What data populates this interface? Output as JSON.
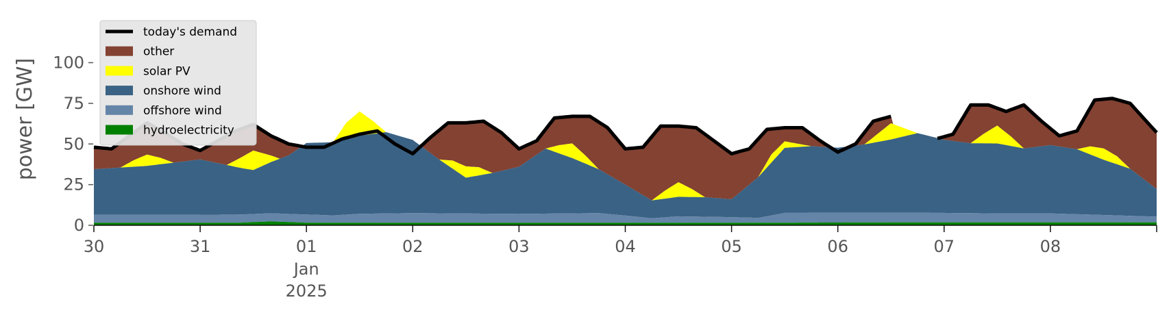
{
  "chart_data": {
    "type": "area",
    "ylabel": "power [GW]",
    "ylim": [
      0,
      120
    ],
    "yticks": [
      0,
      25,
      50,
      75,
      100
    ],
    "x_range_hours": [
      0,
      240
    ],
    "x_ticks": [
      {
        "hour": 0,
        "label": "30",
        "sub1": "",
        "sub2": ""
      },
      {
        "hour": 24,
        "label": "31",
        "sub1": "",
        "sub2": ""
      },
      {
        "hour": 48,
        "label": "01",
        "sub1": "Jan",
        "sub2": "2025"
      },
      {
        "hour": 72,
        "label": "02",
        "sub1": "",
        "sub2": ""
      },
      {
        "hour": 96,
        "label": "03",
        "sub1": "",
        "sub2": ""
      },
      {
        "hour": 120,
        "label": "04",
        "sub1": "",
        "sub2": ""
      },
      {
        "hour": 144,
        "label": "05",
        "sub1": "",
        "sub2": ""
      },
      {
        "hour": 168,
        "label": "06",
        "sub1": "",
        "sub2": ""
      },
      {
        "hour": 192,
        "label": "07",
        "sub1": "",
        "sub2": ""
      },
      {
        "hour": 216,
        "label": "08",
        "sub1": "",
        "sub2": ""
      }
    ],
    "legend": [
      {
        "name": "today's demand",
        "color": "#000000",
        "kind": "line"
      },
      {
        "name": "other",
        "color": "#834232",
        "kind": "patch"
      },
      {
        "name": "solar PV",
        "color": "#ffff00",
        "kind": "patch"
      },
      {
        "name": "onshore wind",
        "color": "#3a6284",
        "kind": "patch"
      },
      {
        "name": "offshore wind",
        "color": "#6485a8",
        "kind": "patch"
      },
      {
        "name": "hydroelectricity",
        "color": "#008000",
        "kind": "patch"
      }
    ],
    "legend_position": "top-left",
    "grid": false,
    "series": [
      {
        "name": "hydroelectricity",
        "color": "#008000",
        "x": [
          0,
          24,
          33,
          40,
          48,
          72,
          96,
          120,
          144,
          168,
          192,
          216,
          240
        ],
        "values": [
          1.5,
          1.5,
          1.6,
          2.4,
          1.6,
          1.5,
          1.5,
          1.5,
          1.5,
          1.7,
          1.8,
          1.8,
          1.8
        ]
      },
      {
        "name": "offshore wind",
        "color": "#6485a8",
        "x": [
          0,
          24,
          48,
          54,
          60,
          72,
          96,
          114,
          120,
          126,
          132,
          144,
          150,
          156,
          168,
          180,
          192,
          204,
          216,
          240
        ],
        "values": [
          5,
          5,
          5,
          4.5,
          5.5,
          6,
          5.5,
          6,
          4.5,
          2.8,
          4,
          3.5,
          3,
          6,
          6,
          6,
          5.8,
          5.5,
          5.5,
          3.5
        ]
      },
      {
        "name": "onshore wind",
        "color": "#3a6284",
        "x": [
          0,
          12,
          24,
          36,
          44,
          48,
          54,
          60,
          66,
          72,
          78,
          84,
          90,
          96,
          102,
          108,
          114,
          120,
          126,
          132,
          138,
          144,
          150,
          156,
          162,
          168,
          174,
          180,
          186,
          192,
          198,
          204,
          210,
          216,
          222,
          228,
          234,
          240
        ],
        "values": [
          28,
          30,
          34,
          27,
          36,
          44,
          45,
          48,
          50,
          45,
          33,
          22,
          25,
          29,
          40,
          34,
          27,
          19,
          11,
          12,
          12,
          11,
          25,
          40,
          41,
          40,
          42,
          45,
          49,
          45,
          43,
          43,
          40,
          42,
          40,
          34,
          29,
          17
        ]
      },
      {
        "name": "solar PV",
        "color": "#ffff00",
        "x": [
          0,
          6,
          9,
          12,
          15,
          18,
          24,
          30,
          33,
          36,
          39,
          42,
          48,
          54,
          57,
          60,
          63,
          66,
          72,
          78,
          81,
          84,
          87,
          90,
          96,
          102,
          105,
          108,
          111,
          114,
          120,
          126,
          129,
          132,
          135,
          138,
          144,
          150,
          153,
          156,
          159,
          162,
          168,
          174,
          177,
          180,
          183,
          186,
          192,
          198,
          201,
          204,
          207,
          210,
          216,
          222,
          225,
          228,
          231,
          234,
          240
        ],
        "values": [
          0,
          0,
          4,
          7,
          4,
          0,
          0,
          0,
          6,
          12,
          6,
          0,
          0,
          0,
          10,
          15,
          8,
          0,
          0,
          0,
          5,
          7,
          5,
          0,
          0,
          0,
          5,
          9,
          5,
          0,
          0,
          0,
          5,
          9,
          5,
          0,
          0,
          0,
          5,
          4,
          2,
          0,
          0,
          0,
          5,
          10,
          5,
          0,
          0,
          0,
          6,
          11,
          6,
          0,
          0,
          0,
          5,
          7,
          5,
          0,
          0
        ]
      },
      {
        "name": "today's demand",
        "color": "#000000",
        "x": [
          0,
          4,
          8,
          12,
          16,
          20,
          24,
          28,
          32,
          36,
          40,
          44,
          48,
          52,
          56,
          60,
          64,
          68,
          72,
          76,
          80,
          84,
          88,
          92,
          96,
          100,
          104,
          108,
          112,
          116,
          120,
          124,
          128,
          132,
          136,
          140,
          144,
          148,
          152,
          156,
          160,
          164,
          168,
          172,
          176,
          180,
          184,
          188,
          190,
          194,
          198,
          202,
          206,
          210,
          214,
          218,
          222,
          226,
          230,
          234,
          240
        ],
        "values": [
          48,
          47,
          55,
          63,
          57,
          50,
          46,
          52,
          58,
          62,
          55,
          50,
          48,
          48,
          53,
          56,
          58,
          50,
          44,
          54,
          63,
          63,
          64,
          57,
          47,
          52,
          66,
          67,
          67,
          60,
          47,
          48,
          61,
          61,
          60,
          52,
          44,
          47,
          59,
          60,
          60,
          52,
          45,
          50,
          64,
          67,
          null,
          null,
          53,
          56,
          74,
          74,
          70,
          74,
          64,
          55,
          58,
          77,
          78,
          75,
          57
        ]
      }
    ]
  }
}
